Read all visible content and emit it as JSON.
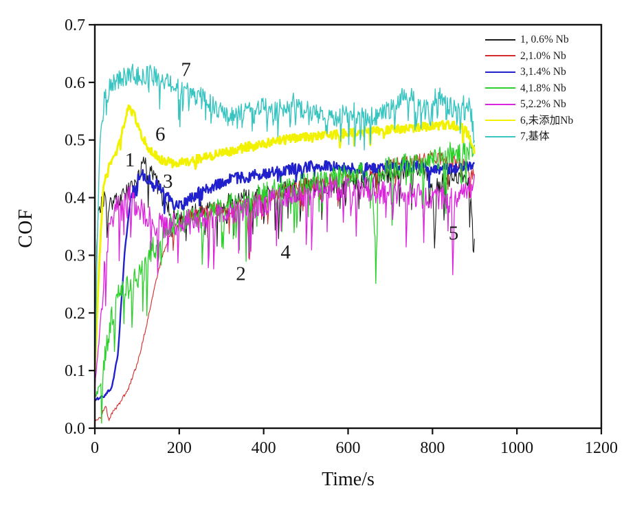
{
  "figure": {
    "background": "#ffffff"
  },
  "chart_data": {
    "type": "line",
    "title": "",
    "xlabel": "Time/s",
    "ylabel": "COF",
    "xlim": [
      0,
      1200
    ],
    "ylim": [
      0.0,
      0.7
    ],
    "xticks": [
      0,
      200,
      400,
      600,
      800,
      1000,
      1200
    ],
    "yticks": [
      "0.0",
      "0.1",
      "0.2",
      "0.3",
      "0.4",
      "0.5",
      "0.6",
      "0.7"
    ],
    "grid": false,
    "legend_position": "top-right",
    "frame_color": "#111111",
    "series": [
      {
        "label": "1, 0.6% Nb",
        "color": "#1a1a1a",
        "width": 1.1,
        "seed": 101,
        "noise": {
          "amp": 0.016,
          "spike_prob": 0.055,
          "spike_mag": 0.085,
          "start": 6
        },
        "points": [
          [
            0,
            0.1
          ],
          [
            4,
            0.3
          ],
          [
            8,
            0.38
          ],
          [
            20,
            0.4
          ],
          [
            40,
            0.39
          ],
          [
            60,
            0.4
          ],
          [
            80,
            0.41
          ],
          [
            100,
            0.43
          ],
          [
            115,
            0.455
          ],
          [
            130,
            0.46
          ],
          [
            145,
            0.43
          ],
          [
            160,
            0.4
          ],
          [
            175,
            0.38
          ],
          [
            190,
            0.365
          ],
          [
            210,
            0.36
          ],
          [
            240,
            0.375
          ],
          [
            270,
            0.385
          ],
          [
            300,
            0.39
          ],
          [
            340,
            0.4
          ],
          [
            380,
            0.405
          ],
          [
            420,
            0.41
          ],
          [
            460,
            0.415
          ],
          [
            500,
            0.42
          ],
          [
            540,
            0.42
          ],
          [
            580,
            0.42
          ],
          [
            620,
            0.425
          ],
          [
            660,
            0.43
          ],
          [
            700,
            0.44
          ],
          [
            740,
            0.45
          ],
          [
            780,
            0.45
          ],
          [
            800,
            0.42
          ],
          [
            805,
            0.3
          ],
          [
            810,
            0.42
          ],
          [
            840,
            0.435
          ],
          [
            870,
            0.44
          ],
          [
            893,
            0.42
          ],
          [
            897,
            0.3
          ],
          [
            900,
            0.33
          ]
        ]
      },
      {
        "label": "2,1.0% Nb",
        "color": "#d42a2a",
        "width": 1.1,
        "seed": 102,
        "noise": {
          "amp": 0.012,
          "spike_prob": 0.035,
          "spike_mag": 0.055,
          "start": 185
        },
        "points": [
          [
            0,
            0.01
          ],
          [
            15,
            0.02
          ],
          [
            25,
            0.04
          ],
          [
            33,
            0.015
          ],
          [
            45,
            0.03
          ],
          [
            60,
            0.045
          ],
          [
            80,
            0.07
          ],
          [
            100,
            0.11
          ],
          [
            120,
            0.17
          ],
          [
            140,
            0.24
          ],
          [
            160,
            0.3
          ],
          [
            180,
            0.34
          ],
          [
            200,
            0.36
          ],
          [
            230,
            0.37
          ],
          [
            260,
            0.375
          ],
          [
            300,
            0.38
          ],
          [
            340,
            0.385
          ],
          [
            360,
            0.39
          ],
          [
            366,
            0.285
          ],
          [
            372,
            0.39
          ],
          [
            400,
            0.4
          ],
          [
            440,
            0.41
          ],
          [
            480,
            0.42
          ],
          [
            520,
            0.425
          ],
          [
            560,
            0.43
          ],
          [
            600,
            0.44
          ],
          [
            640,
            0.445
          ],
          [
            680,
            0.45
          ],
          [
            720,
            0.46
          ],
          [
            760,
            0.465
          ],
          [
            800,
            0.47
          ],
          [
            840,
            0.465
          ],
          [
            870,
            0.46
          ],
          [
            900,
            0.44
          ]
        ]
      },
      {
        "label": "3,1.4% Nb",
        "color": "#2020cc",
        "width": 2.4,
        "seed": 103,
        "noise": {
          "amp": 0.01,
          "spike_prob": 0.02,
          "spike_mag": 0.03,
          "start": 90
        },
        "points": [
          [
            0,
            0.05
          ],
          [
            20,
            0.055
          ],
          [
            40,
            0.07
          ],
          [
            55,
            0.13
          ],
          [
            70,
            0.3
          ],
          [
            85,
            0.4
          ],
          [
            100,
            0.43
          ],
          [
            115,
            0.44
          ],
          [
            130,
            0.43
          ],
          [
            150,
            0.42
          ],
          [
            170,
            0.405
          ],
          [
            190,
            0.385
          ],
          [
            205,
            0.385
          ],
          [
            220,
            0.395
          ],
          [
            250,
            0.41
          ],
          [
            280,
            0.42
          ],
          [
            310,
            0.43
          ],
          [
            350,
            0.435
          ],
          [
            390,
            0.44
          ],
          [
            430,
            0.445
          ],
          [
            470,
            0.45
          ],
          [
            510,
            0.455
          ],
          [
            550,
            0.455
          ],
          [
            590,
            0.45
          ],
          [
            630,
            0.45
          ],
          [
            670,
            0.452
          ],
          [
            710,
            0.455
          ],
          [
            750,
            0.455
          ],
          [
            790,
            0.45
          ],
          [
            830,
            0.45
          ],
          [
            870,
            0.452
          ],
          [
            900,
            0.46
          ]
        ]
      },
      {
        "label": "4,1.8% Nb",
        "color": "#2bd02b",
        "width": 1.3,
        "seed": 104,
        "noise": {
          "amp": 0.022,
          "spike_prob": 0.075,
          "spike_mag": 0.1,
          "start": 20
        },
        "points": [
          [
            0,
            0.05
          ],
          [
            15,
            0.08
          ],
          [
            30,
            0.15
          ],
          [
            45,
            0.21
          ],
          [
            60,
            0.235
          ],
          [
            80,
            0.245
          ],
          [
            100,
            0.26
          ],
          [
            120,
            0.29
          ],
          [
            140,
            0.32
          ],
          [
            160,
            0.34
          ],
          [
            185,
            0.355
          ],
          [
            210,
            0.36
          ],
          [
            240,
            0.365
          ],
          [
            270,
            0.37
          ],
          [
            300,
            0.38
          ],
          [
            340,
            0.39
          ],
          [
            380,
            0.4
          ],
          [
            420,
            0.41
          ],
          [
            460,
            0.42
          ],
          [
            500,
            0.425
          ],
          [
            540,
            0.43
          ],
          [
            580,
            0.435
          ],
          [
            620,
            0.44
          ],
          [
            660,
            0.44
          ],
          [
            666,
            0.25
          ],
          [
            672,
            0.44
          ],
          [
            700,
            0.45
          ],
          [
            740,
            0.455
          ],
          [
            780,
            0.46
          ],
          [
            820,
            0.47
          ],
          [
            860,
            0.48
          ],
          [
            900,
            0.49
          ]
        ]
      },
      {
        "label": "5,2.2% Nb",
        "color": "#dd22dd",
        "width": 1.3,
        "seed": 105,
        "noise": {
          "amp": 0.022,
          "spike_prob": 0.075,
          "spike_mag": 0.1,
          "start": 15
        },
        "points": [
          [
            0,
            0.07
          ],
          [
            10,
            0.15
          ],
          [
            25,
            0.3
          ],
          [
            40,
            0.36
          ],
          [
            55,
            0.395
          ],
          [
            70,
            0.41
          ],
          [
            85,
            0.4
          ],
          [
            100,
            0.385
          ],
          [
            120,
            0.37
          ],
          [
            145,
            0.355
          ],
          [
            170,
            0.35
          ],
          [
            200,
            0.355
          ],
          [
            240,
            0.36
          ],
          [
            280,
            0.365
          ],
          [
            320,
            0.37
          ],
          [
            360,
            0.38
          ],
          [
            400,
            0.39
          ],
          [
            440,
            0.4
          ],
          [
            480,
            0.405
          ],
          [
            520,
            0.41
          ],
          [
            560,
            0.415
          ],
          [
            600,
            0.415
          ],
          [
            640,
            0.415
          ],
          [
            680,
            0.41
          ],
          [
            720,
            0.41
          ],
          [
            760,
            0.405
          ],
          [
            800,
            0.4
          ],
          [
            845,
            0.4
          ],
          [
            848,
            0.26
          ],
          [
            852,
            0.4
          ],
          [
            870,
            0.41
          ],
          [
            900,
            0.42
          ]
        ]
      },
      {
        "label": "6,未添加Nb",
        "color": "#f2f200",
        "width": 3.0,
        "seed": 106,
        "noise": {
          "amp": 0.008,
          "spike_prob": 0.02,
          "spike_mag": 0.018,
          "start": 25
        },
        "points": [
          [
            0,
            0.1
          ],
          [
            10,
            0.28
          ],
          [
            20,
            0.42
          ],
          [
            35,
            0.455
          ],
          [
            50,
            0.48
          ],
          [
            65,
            0.52
          ],
          [
            80,
            0.557
          ],
          [
            95,
            0.54
          ],
          [
            110,
            0.51
          ],
          [
            125,
            0.49
          ],
          [
            140,
            0.475
          ],
          [
            160,
            0.465
          ],
          [
            185,
            0.46
          ],
          [
            215,
            0.462
          ],
          [
            250,
            0.468
          ],
          [
            290,
            0.475
          ],
          [
            330,
            0.482
          ],
          [
            370,
            0.49
          ],
          [
            410,
            0.495
          ],
          [
            450,
            0.5
          ],
          [
            490,
            0.505
          ],
          [
            530,
            0.508
          ],
          [
            570,
            0.51
          ],
          [
            610,
            0.512
          ],
          [
            650,
            0.515
          ],
          [
            690,
            0.518
          ],
          [
            730,
            0.52
          ],
          [
            770,
            0.522
          ],
          [
            810,
            0.525
          ],
          [
            845,
            0.527
          ],
          [
            875,
            0.52
          ],
          [
            893,
            0.5
          ],
          [
            900,
            0.47
          ]
        ]
      },
      {
        "label": "7,基体",
        "color": "#38c4c0",
        "width": 1.4,
        "seed": 107,
        "noise": {
          "amp": 0.017,
          "spike_prob": 0.11,
          "spike_mag": 0.055,
          "start": 15
        },
        "points": [
          [
            0,
            0.07
          ],
          [
            5,
            0.3
          ],
          [
            12,
            0.5
          ],
          [
            20,
            0.565
          ],
          [
            35,
            0.59
          ],
          [
            50,
            0.6
          ],
          [
            70,
            0.61
          ],
          [
            90,
            0.615
          ],
          [
            110,
            0.61
          ],
          [
            130,
            0.615
          ],
          [
            150,
            0.61
          ],
          [
            170,
            0.6
          ],
          [
            190,
            0.595
          ],
          [
            210,
            0.59
          ],
          [
            230,
            0.58
          ],
          [
            250,
            0.575
          ],
          [
            270,
            0.565
          ],
          [
            290,
            0.555
          ],
          [
            310,
            0.545
          ],
          [
            330,
            0.54
          ],
          [
            350,
            0.55
          ],
          [
            370,
            0.555
          ],
          [
            390,
            0.56
          ],
          [
            410,
            0.555
          ],
          [
            430,
            0.55
          ],
          [
            450,
            0.56
          ],
          [
            470,
            0.565
          ],
          [
            490,
            0.555
          ],
          [
            510,
            0.55
          ],
          [
            530,
            0.545
          ],
          [
            550,
            0.55
          ],
          [
            570,
            0.535
          ],
          [
            590,
            0.545
          ],
          [
            610,
            0.55
          ],
          [
            630,
            0.54
          ],
          [
            650,
            0.545
          ],
          [
            670,
            0.54
          ],
          [
            690,
            0.55
          ],
          [
            710,
            0.555
          ],
          [
            730,
            0.575
          ],
          [
            750,
            0.58
          ],
          [
            770,
            0.56
          ],
          [
            790,
            0.555
          ],
          [
            810,
            0.58
          ],
          [
            830,
            0.565
          ],
          [
            850,
            0.555
          ],
          [
            870,
            0.57
          ],
          [
            885,
            0.56
          ],
          [
            893,
            0.54
          ],
          [
            900,
            0.49
          ]
        ]
      }
    ],
    "annotations": [
      {
        "text": "1",
        "x": 83,
        "y": 0.465
      },
      {
        "text": "2",
        "x": 346,
        "y": 0.268
      },
      {
        "text": "3",
        "x": 173,
        "y": 0.428
      },
      {
        "text": "4",
        "x": 452,
        "y": 0.305
      },
      {
        "text": "5",
        "x": 850,
        "y": 0.338
      },
      {
        "text": "6",
        "x": 155,
        "y": 0.51
      },
      {
        "text": "7",
        "x": 216,
        "y": 0.622
      }
    ]
  }
}
